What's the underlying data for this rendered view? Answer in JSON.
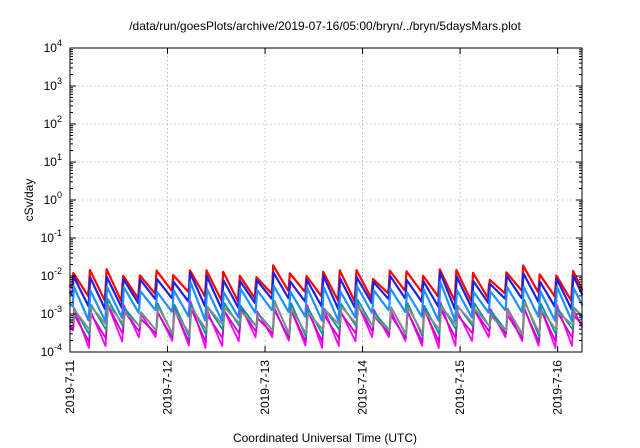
{
  "chart_data": {
    "type": "line",
    "title": "/data/run/goesPlots/archive/2019-07-16/05:00/bryn/../bryn/5daysMars.plot",
    "xlabel": "Coordinated Universal Time (UTC)",
    "ylabel": "cSv/day",
    "yscale": "log",
    "ylim": [
      0.0001,
      10000
    ],
    "xlim": [
      "2019-07-11 00:00",
      "2019-07-16 06:00"
    ],
    "x_ticks": [
      "2019-7-11",
      "2019-7-12",
      "2019-7-13",
      "2019-7-14",
      "2019-7-15",
      "2019-7-16"
    ],
    "y_ticks": [
      {
        "base": "10",
        "exp": "-4"
      },
      {
        "base": "10",
        "exp": "-3"
      },
      {
        "base": "10",
        "exp": "-2"
      },
      {
        "base": "10",
        "exp": "-1"
      },
      {
        "base": "10",
        "exp": "0"
      },
      {
        "base": "10",
        "exp": "1"
      },
      {
        "base": "10",
        "exp": "2"
      },
      {
        "base": "10",
        "exp": "3"
      },
      {
        "base": "10",
        "exp": "4"
      }
    ],
    "grid": true,
    "sawtooth_period_hours": 4.1,
    "series": [
      {
        "color": "#ff0000",
        "peak": 0.012,
        "trough": 0.003
      },
      {
        "color": "#2020e0",
        "peak": 0.0085,
        "trough": 0.0019
      },
      {
        "color": "#1e90ff",
        "peak": 0.0045,
        "trough": 0.0009
      },
      {
        "color": "#ff00ff",
        "peak": 0.0014,
        "trough": 0.00018
      },
      {
        "color": "#cc00cc",
        "peak": 0.0011,
        "trough": 0.00025
      },
      {
        "color": "#009999",
        "peak": 0.0016,
        "trough": 0.00035
      },
      {
        "color": "#888888",
        "peak": 0.0013,
        "trough": 0.0004
      }
    ]
  }
}
